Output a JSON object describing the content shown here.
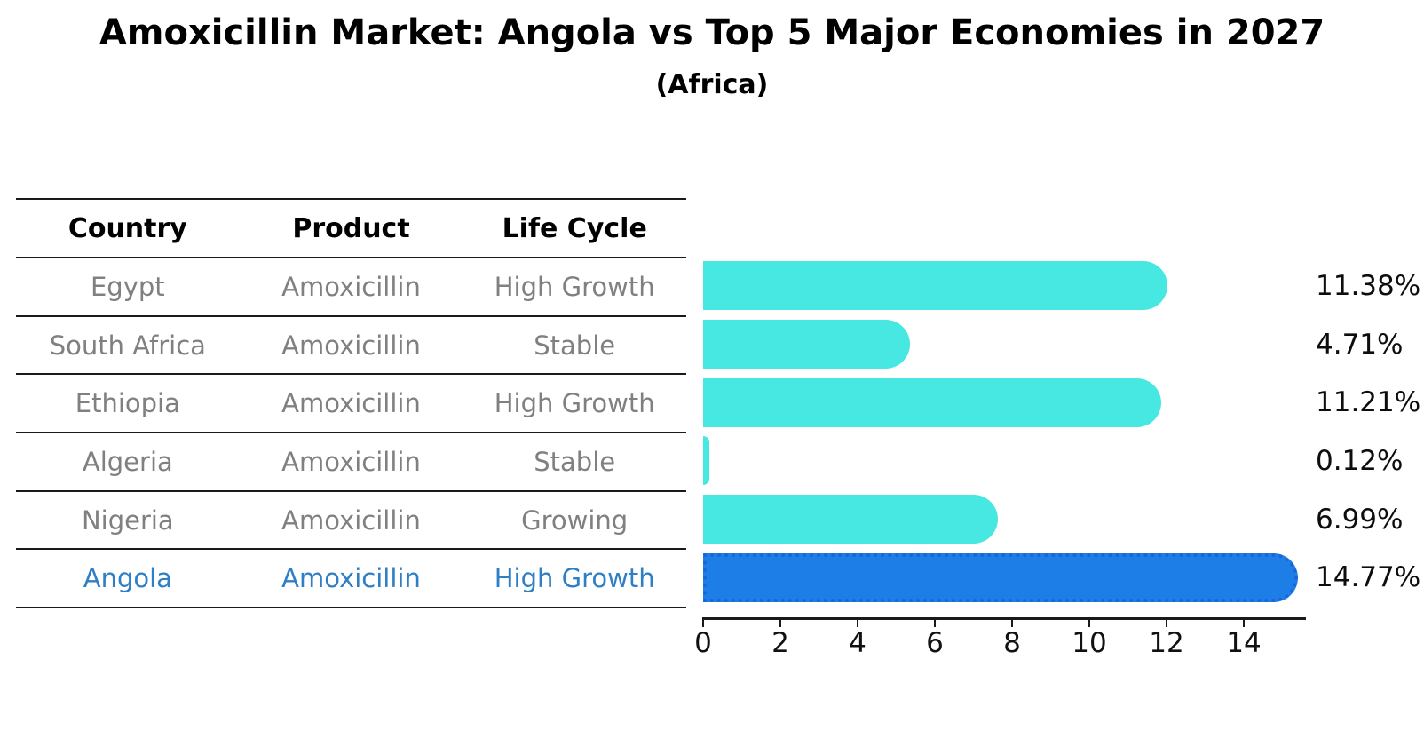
{
  "title": "Amoxicillin Market: Angola vs Top 5 Major Economies in 2027",
  "subtitle": "(Africa)",
  "table": {
    "headers": [
      "Country",
      "Product",
      "Life Cycle"
    ],
    "rows": [
      {
        "country": "Egypt",
        "product": "Amoxicillin",
        "life_cycle": "High Growth",
        "highlight": false
      },
      {
        "country": "South Africa",
        "product": "Amoxicillin",
        "life_cycle": "Stable",
        "highlight": false
      },
      {
        "country": "Ethiopia",
        "product": "Amoxicillin",
        "life_cycle": "High Growth",
        "highlight": false
      },
      {
        "country": "Algeria",
        "product": "Amoxicillin",
        "life_cycle": "Stable",
        "highlight": false
      },
      {
        "country": "Nigeria",
        "product": "Amoxicillin",
        "life_cycle": "Growing",
        "highlight": false
      },
      {
        "country": "Angola",
        "product": "Amoxicillin",
        "life_cycle": "High Growth",
        "highlight": true
      }
    ]
  },
  "chart_data": {
    "type": "bar",
    "orientation": "horizontal",
    "title": "Amoxicillin Market: Angola vs Top 5 Major Economies in 2027",
    "subtitle": "(Africa)",
    "categories": [
      "Egypt",
      "South Africa",
      "Ethiopia",
      "Algeria",
      "Nigeria",
      "Angola"
    ],
    "values": [
      11.38,
      4.71,
      11.21,
      0.12,
      6.99,
      14.77
    ],
    "value_labels": [
      "11.38%",
      "4.71%",
      "11.21%",
      "0.12%",
      "6.99%",
      "14.77%"
    ],
    "x_ticks": [
      0,
      2,
      4,
      6,
      8,
      10,
      12,
      14
    ],
    "xlim": [
      0,
      15.6
    ],
    "grid": false,
    "legend": null,
    "bar_color": "#46E8E1",
    "highlight_bar_color": "#1E7EE8",
    "highlight_border_color": "#1B66D6",
    "highlight_index": 5
  },
  "colors": {
    "highlight_text": "#2E7FC5",
    "row_text": "#808080",
    "header_text": "#000000",
    "value_label_text": "#0D0D0D"
  }
}
